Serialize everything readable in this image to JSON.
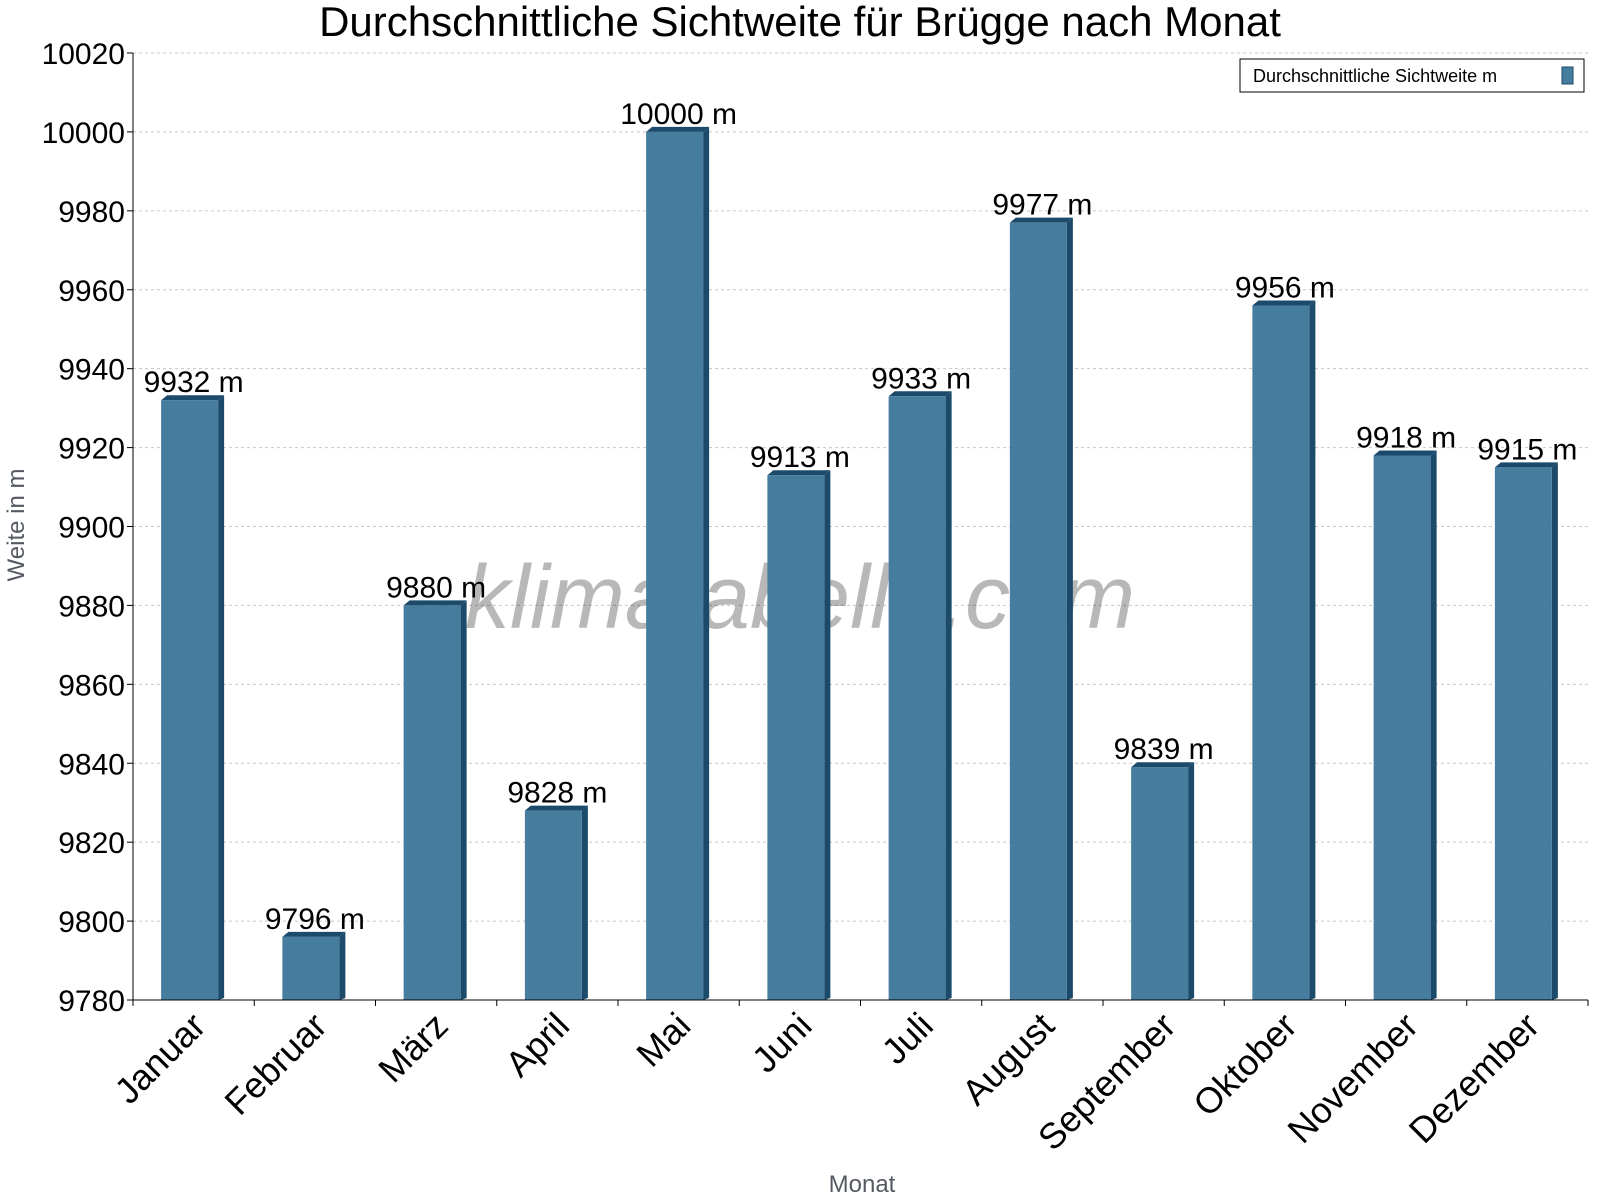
{
  "chart_data": {
    "type": "bar",
    "title": "Durchschnittliche Sichtweite für Brügge nach Monat",
    "xlabel": "Monat",
    "ylabel": "Weite in m",
    "categories": [
      "Januar",
      "Februar",
      "März",
      "April",
      "Mai",
      "Juni",
      "Juli",
      "August",
      "September",
      "Oktober",
      "November",
      "Dezember"
    ],
    "series": [
      {
        "name": "Durchschnittliche Sichtweite m",
        "values": [
          9932,
          9796,
          9880,
          9828,
          10000,
          9913,
          9933,
          9977,
          9839,
          9956,
          9918,
          9915
        ],
        "labels": [
          "9932 m",
          "9796 m",
          "9880 m",
          "9828 m",
          "10000 m",
          "9913 m",
          "9933 m",
          "9977 m",
          "9839 m",
          "9956 m",
          "9918 m",
          "9915 m"
        ]
      }
    ],
    "ylim": [
      9780,
      10020
    ],
    "yticks": [
      9780,
      9800,
      9820,
      9840,
      9860,
      9880,
      9900,
      9920,
      9940,
      9960,
      9980,
      10000,
      10020
    ],
    "grid": true,
    "legend": "top-right",
    "watermark": "klimatabelle.com",
    "colors": {
      "bar": "#467c9e",
      "bar_dark": "#1b4a6b",
      "grid": "#c8c8c8",
      "axis": "#000000"
    }
  }
}
